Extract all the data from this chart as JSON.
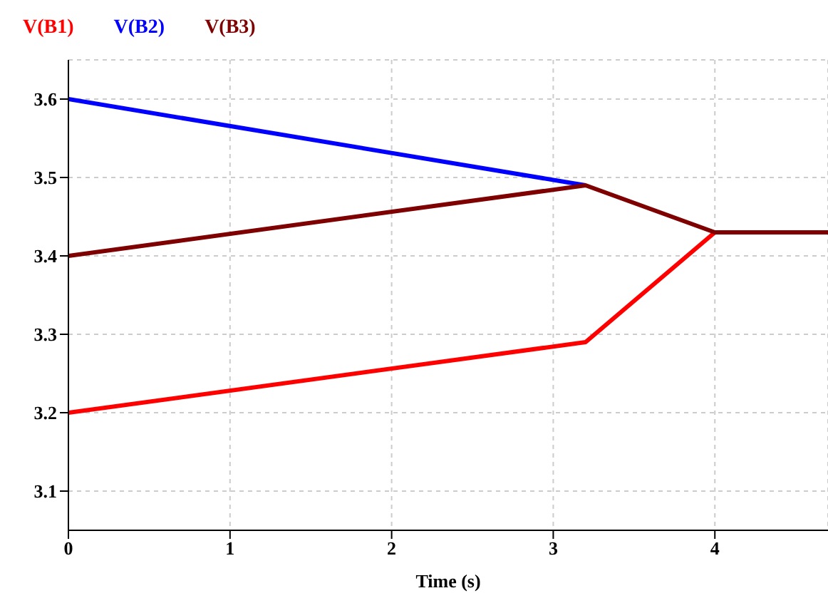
{
  "chart_data": {
    "type": "line",
    "xlabel": "Time (s)",
    "x": [
      0,
      3.2,
      4,
      4.7
    ],
    "series": [
      {
        "name": "V(B1)",
        "color": "#ff0000",
        "values": [
          3.2,
          3.29,
          3.43,
          null
        ]
      },
      {
        "name": "V(B2)",
        "color": "#0000ff",
        "values": [
          3.6,
          3.49,
          null,
          null
        ]
      },
      {
        "name": "V(B3)",
        "color": "#7f0000",
        "values": [
          3.4,
          3.49,
          3.43,
          3.43
        ]
      }
    ],
    "xlim": [
      0,
      4.7
    ],
    "xticks": [
      0,
      1,
      2,
      3,
      4
    ],
    "ylim": [
      3.05,
      3.65
    ],
    "yticks": [
      3.1,
      3.2,
      3.3,
      3.4,
      3.5,
      3.6
    ],
    "grid": true,
    "legend": "top left",
    "marker": "none",
    "line_style": "solid"
  }
}
